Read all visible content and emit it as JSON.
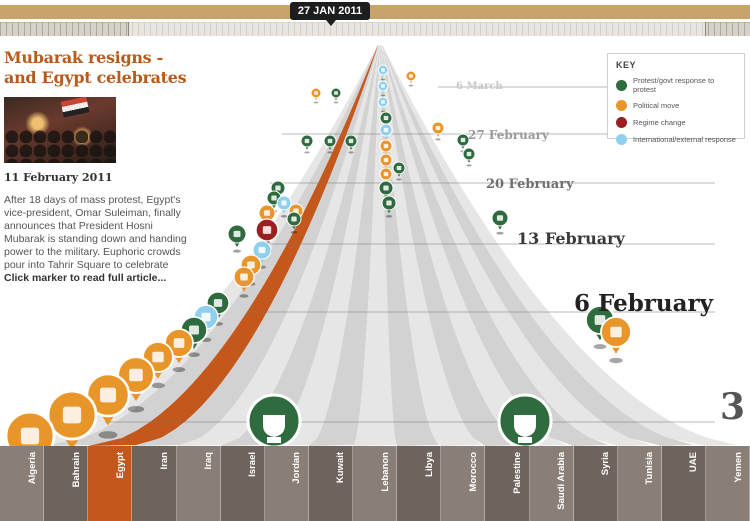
{
  "timeline": {
    "current_date": "27 JAN 2011"
  },
  "article": {
    "title": "Mubarak resigns - and Egypt celebrates",
    "date": "11 February 2011",
    "body": "After 18 days of mass protest, Egypt's vice-president, Omar Suleiman, finally announces that President Hosni Mubarak is standing down and handing power to the military. Euphoric crowds pour into Tahrir Square to celebrate",
    "read_more": "Click marker to read full article..."
  },
  "key": {
    "title": "KEY",
    "items": [
      {
        "label": "Protest/govt response to protest",
        "color": "#2f6b3e"
      },
      {
        "label": "Political move",
        "color": "#e8952a"
      },
      {
        "label": "Regime change",
        "color": "#9a1f1f"
      },
      {
        "label": "International/external response",
        "color": "#8fd0ef"
      }
    ]
  },
  "weeks": [
    {
      "label": "6 March"
    },
    {
      "label": "27 February"
    },
    {
      "label": "20 February"
    },
    {
      "label": "13 February"
    },
    {
      "label": "6 February"
    },
    {
      "label": "3"
    }
  ],
  "countries": [
    "Algeria",
    "Bahrain",
    "Egypt",
    "Iran",
    "Iraq",
    "Israel",
    "Jordan",
    "Kuwait",
    "Lebanon",
    "Libya",
    "Morocco",
    "Palestine",
    "Saudi Arabia",
    "Syria",
    "Tunisia",
    "UAE",
    "Yemen"
  ],
  "colors": {
    "protest": "#2f6b3e",
    "political": "#e8952a",
    "regime": "#9a1f1f",
    "international": "#8fd0ef",
    "highlight_lane": "#c4571c"
  }
}
